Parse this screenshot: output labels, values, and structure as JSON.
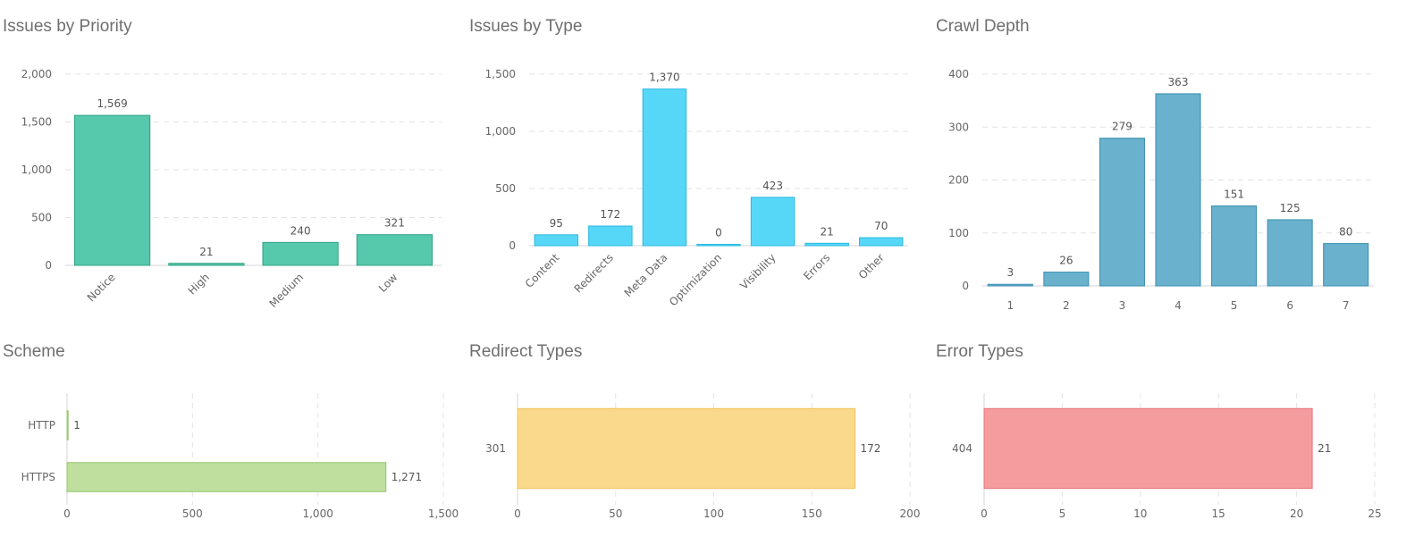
{
  "chart_data": [
    {
      "id": "priority",
      "type": "bar",
      "title": "Issues by Priority",
      "categories": [
        "Notice",
        "High",
        "Medium",
        "Low"
      ],
      "values": [
        1569,
        21,
        240,
        321
      ],
      "ylim": [
        0,
        2000
      ],
      "ticks": [
        0,
        500,
        1000,
        1500,
        2000
      ],
      "tick_labels": [
        "0",
        "500",
        "1,000",
        "1,500",
        "2,000"
      ],
      "value_labels": [
        "1,569",
        "21",
        "240",
        "321"
      ],
      "color": "#56c9ad",
      "stroke": "#2fa383",
      "rotate_labels": true,
      "grid": true
    },
    {
      "id": "type",
      "type": "bar",
      "title": "Issues by Type",
      "categories": [
        "Content",
        "Redirects",
        "Meta Data",
        "Optimization",
        "Visibility",
        "Errors",
        "Other"
      ],
      "values": [
        95,
        172,
        1370,
        0,
        423,
        21,
        70
      ],
      "ylim": [
        0,
        1500
      ],
      "ticks": [
        0,
        500,
        1000,
        1500
      ],
      "tick_labels": [
        "0",
        "500",
        "1,000",
        "1,500"
      ],
      "value_labels": [
        "95",
        "172",
        "1,370",
        "0",
        "423",
        "21",
        "70"
      ],
      "color": "#57d7f7",
      "stroke": "#2bb8df",
      "rotate_labels": true,
      "grid": true
    },
    {
      "id": "depth",
      "type": "bar",
      "title": "Crawl Depth",
      "categories": [
        "1",
        "2",
        "3",
        "4",
        "5",
        "6",
        "7"
      ],
      "values": [
        3,
        26,
        279,
        363,
        151,
        125,
        80
      ],
      "ylim": [
        0,
        400
      ],
      "ticks": [
        0,
        100,
        200,
        300,
        400
      ],
      "tick_labels": [
        "0",
        "100",
        "200",
        "300",
        "400"
      ],
      "value_labels": [
        "3",
        "26",
        "279",
        "363",
        "151",
        "125",
        "80"
      ],
      "color": "#69b1cc",
      "stroke": "#3b8eb0",
      "rotate_labels": false,
      "grid": true
    },
    {
      "id": "scheme",
      "type": "hbar",
      "title": "Scheme",
      "categories": [
        "HTTP",
        "HTTPS"
      ],
      "values": [
        1,
        1271
      ],
      "xlim": [
        0,
        1500
      ],
      "ticks": [
        0,
        500,
        1000,
        1500
      ],
      "tick_labels": [
        "0",
        "500",
        "1,000",
        "1,500"
      ],
      "value_labels": [
        "1",
        "1,271"
      ],
      "color": "#bfdf9f",
      "stroke": "#95c469",
      "grid": true
    },
    {
      "id": "redirect",
      "type": "hbar",
      "title": "Redirect Types",
      "categories": [
        "301"
      ],
      "values": [
        172
      ],
      "xlim": [
        0,
        200
      ],
      "ticks": [
        0,
        50,
        100,
        150,
        200
      ],
      "tick_labels": [
        "0",
        "50",
        "100",
        "150",
        "200"
      ],
      "value_labels": [
        "172"
      ],
      "color": "#fad98c",
      "stroke": "#f0c35c",
      "grid": true
    },
    {
      "id": "error",
      "type": "hbar",
      "title": "Error Types",
      "categories": [
        "404"
      ],
      "values": [
        21
      ],
      "xlim": [
        0,
        25
      ],
      "ticks": [
        0,
        5,
        10,
        15,
        20,
        25
      ],
      "tick_labels": [
        "0",
        "5",
        "10",
        "15",
        "20",
        "25"
      ],
      "value_labels": [
        "21"
      ],
      "color": "#f59c9f",
      "stroke": "#e77479",
      "grid": true
    }
  ]
}
